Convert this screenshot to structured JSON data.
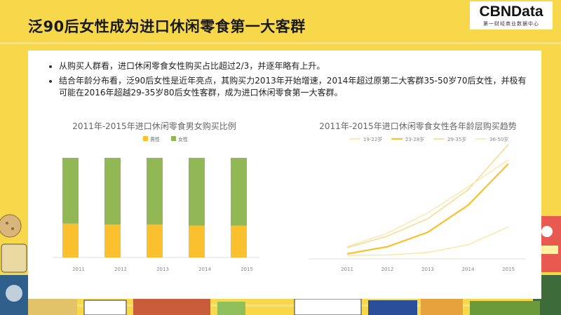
{
  "header": {
    "title": "泛90后女性成为进口休闲零食第一大客群",
    "logo_main": "CBNData",
    "logo_sub": "第一财经商业数据中心"
  },
  "bullets": [
    "从购买人群看，进口休闲零食女性购买占比超过2/3，并逐年略有上升。",
    "结合年龄分布看，泛90后女性是近年亮点，其购买力2013年开始增速，2014年超过原第二大客群35-50岁70后女性，并极有可能在2016年超越29-35岁80后女性客群，成为进口休闲零食第一大客群。"
  ],
  "colors": {
    "background": "#f7d84a",
    "male": "#fbc02d",
    "female": "#92b755"
  },
  "chart_data": [
    {
      "type": "bar",
      "title": "2011年-2015年进口休闲零食男女购买比例",
      "categories": [
        "2011",
        "2012",
        "2013",
        "2014",
        "2015"
      ],
      "series": [
        {
          "name": "男性",
          "color": "#fbc02d",
          "values": [
            0.34,
            0.33,
            0.33,
            0.32,
            0.32
          ]
        },
        {
          "name": "女性",
          "color": "#92b755",
          "values": [
            0.66,
            0.67,
            0.67,
            0.68,
            0.68
          ]
        }
      ],
      "stacked": true,
      "ylim": [
        0,
        1
      ],
      "grid": false,
      "legend": "top-center"
    },
    {
      "type": "line",
      "title": "2011年-2015年进口休闲零食女性各年龄层购买趋势",
      "categories": [
        "2011",
        "2012",
        "2013",
        "2014",
        "2015"
      ],
      "series": [
        {
          "name": "19-22岁",
          "color": "#fbe6a2",
          "values": [
            0.0,
            0.2,
            1.5,
            5.5,
            14.8
          ]
        },
        {
          "name": "23-28岁",
          "color": "#fbc02d",
          "values": [
            0.8,
            4.5,
            12.0,
            26.0,
            47.5
          ]
        },
        {
          "name": "29-35岁",
          "color": "#fad784",
          "values": [
            4.0,
            10.0,
            19.0,
            34.0,
            57.5
          ]
        },
        {
          "name": "36-50岁",
          "color": "#fce6ad",
          "values": [
            4.5,
            11.5,
            22.0,
            35.5,
            49.5
          ]
        }
      ],
      "ylim": [
        0,
        60
      ],
      "grid": false,
      "legend": "top-center"
    }
  ]
}
